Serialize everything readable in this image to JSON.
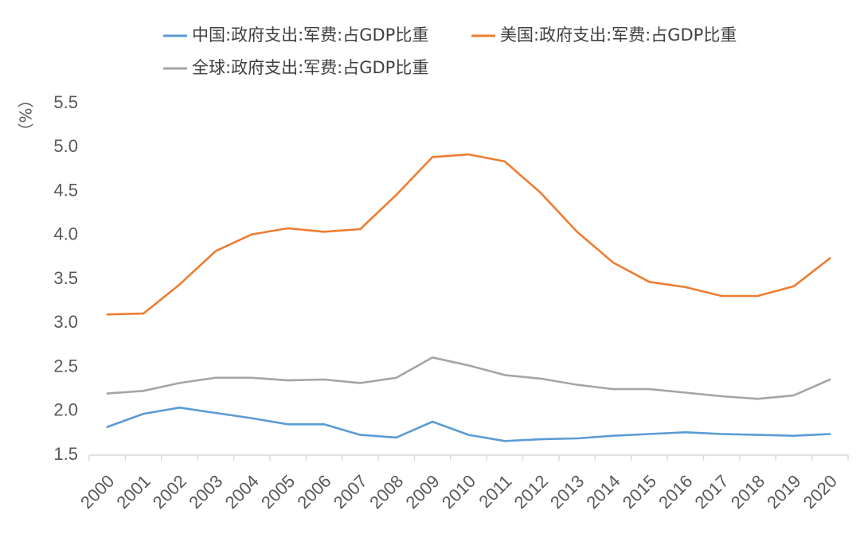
{
  "chart_data": {
    "type": "line",
    "ylabel": "（%）",
    "ylim": [
      1.5,
      5.5
    ],
    "ytick_step": 0.5,
    "grid": false,
    "legend_position": "top",
    "categories": [
      "2000",
      "2001",
      "2002",
      "2003",
      "2004",
      "2005",
      "2006",
      "2007",
      "2008",
      "2009",
      "2010",
      "2011",
      "2012",
      "2013",
      "2014",
      "2015",
      "2016",
      "2017",
      "2018",
      "2019",
      "2020"
    ],
    "series": [
      {
        "name": "中国:政府支出:军费:占GDP比重",
        "color": "#5B9BD5",
        "values": [
          1.82,
          1.97,
          2.04,
          1.98,
          1.92,
          1.85,
          1.85,
          1.73,
          1.7,
          1.88,
          1.73,
          1.66,
          1.68,
          1.69,
          1.72,
          1.74,
          1.76,
          1.74,
          1.73,
          1.72,
          1.74
        ]
      },
      {
        "name": "美国:政府支出:军费:占GDP比重",
        "color": "#ED7D31",
        "values": [
          3.1,
          3.11,
          3.44,
          3.82,
          4.01,
          4.08,
          4.04,
          4.07,
          4.46,
          4.89,
          4.92,
          4.84,
          4.48,
          4.04,
          3.69,
          3.47,
          3.41,
          3.31,
          3.31,
          3.42,
          3.74
        ]
      },
      {
        "name": "全球:政府支出:军费:占GDP比重",
        "color": "#A5A5A5",
        "values": [
          2.2,
          2.23,
          2.32,
          2.38,
          2.38,
          2.35,
          2.36,
          2.32,
          2.38,
          2.61,
          2.52,
          2.41,
          2.37,
          2.3,
          2.25,
          2.25,
          2.21,
          2.17,
          2.14,
          2.18,
          2.36
        ]
      }
    ]
  }
}
